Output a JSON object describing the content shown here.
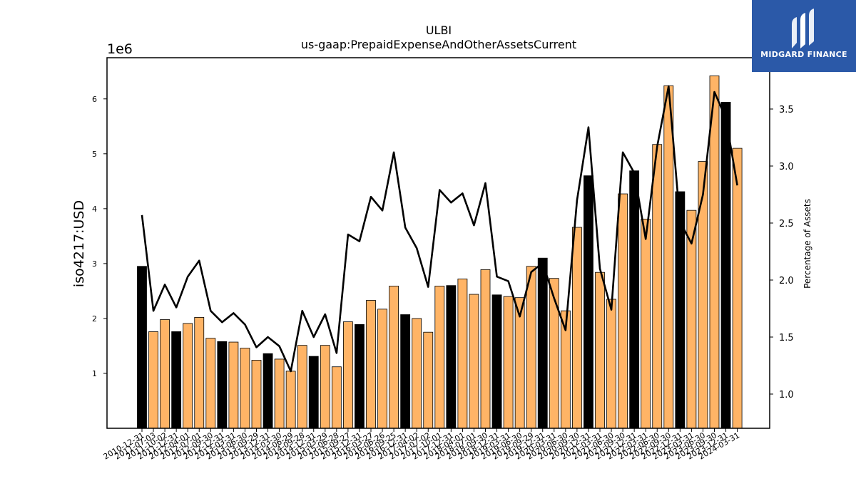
{
  "colors": {
    "annual": "#000000",
    "quarterly": "#ffb466",
    "line": "#000000",
    "logo_bg": "#2b59a8"
  },
  "logo": {
    "text": "MIDGARD FINANCE",
    "icon": "midgard-logo-icon"
  },
  "chart_data": {
    "type": "bar",
    "title": "ULBI",
    "subtitle": "us-gaap:PrepaidExpenseAndOtherAssetsCurrent",
    "ylabel": "iso4217:USD",
    "y2label": "Percentage of Assets",
    "y_scale_label": "1e6",
    "ylim": [
      0,
      6750000
    ],
    "y2lim": [
      0.7,
      3.95
    ],
    "yticks": [
      1,
      2,
      3,
      4,
      5,
      6
    ],
    "y2ticks": [
      "1.0",
      "1.5",
      "2.0",
      "2.5",
      "3.0",
      "3.5"
    ],
    "categories": [
      "2010-12-31",
      "2011-07-03",
      "2011-10-02",
      "2011-12-31",
      "2012-04-01",
      "2012-07-01",
      "2012-09-30",
      "2012-12-31",
      "2013-03-31",
      "2013-06-30",
      "2013-09-29",
      "2013-12-31",
      "2014-03-30",
      "2014-06-29",
      "2014-09-28",
      "2014-12-31",
      "2015-03-29",
      "2015-06-28",
      "2015-09-27",
      "2015-12-31",
      "2016-03-27",
      "2016-06-26",
      "2016-09-25",
      "2016-12-31",
      "2017-04-02",
      "2017-07-02",
      "2017-10-01",
      "2017-12-31",
      "2018-04-01",
      "2018-07-01",
      "2018-09-30",
      "2018-12-31",
      "2019-03-31",
      "2019-06-30",
      "2019-09-29",
      "2019-12-31",
      "2020-03-31",
      "2020-06-30",
      "2020-09-30",
      "2020-12-31",
      "2021-03-31",
      "2021-06-30",
      "2021-09-30",
      "2021-12-31",
      "2022-03-31",
      "2022-06-30",
      "2022-09-30",
      "2022-12-31",
      "2023-03-31",
      "2023-06-30",
      "2023-09-30",
      "2023-12-31",
      "2024-03-31"
    ],
    "series": [
      {
        "kind": "bar",
        "values": [
          2950000,
          1760000,
          1980000,
          1760000,
          1910000,
          2020000,
          1640000,
          1580000,
          1570000,
          1460000,
          1240000,
          1360000,
          1260000,
          1040000,
          1510000,
          1310000,
          1510000,
          1120000,
          1940000,
          1890000,
          2330000,
          2170000,
          2590000,
          2070000,
          2000000,
          1750000,
          2590000,
          2600000,
          2720000,
          2440000,
          2890000,
          2430000,
          2400000,
          2380000,
          2950000,
          3100000,
          2730000,
          2140000,
          3660000,
          4600000,
          2840000,
          2350000,
          4270000,
          4690000,
          3810000,
          5170000,
          6240000,
          4310000,
          3970000,
          4860000,
          6420000,
          5940000,
          5100000
        ],
        "annual": [
          true,
          false,
          false,
          true,
          false,
          false,
          false,
          true,
          false,
          false,
          false,
          true,
          false,
          false,
          false,
          true,
          false,
          false,
          false,
          true,
          false,
          false,
          false,
          true,
          false,
          false,
          false,
          true,
          false,
          false,
          false,
          true,
          false,
          false,
          false,
          true,
          false,
          false,
          false,
          true,
          false,
          false,
          false,
          true,
          false,
          false,
          false,
          true,
          false,
          false,
          false,
          true,
          false
        ]
      },
      {
        "kind": "line",
        "axis": "right",
        "values": [
          2.57,
          1.73,
          1.96,
          1.76,
          2.03,
          2.17,
          1.73,
          1.63,
          1.71,
          1.61,
          1.41,
          1.5,
          1.42,
          1.2,
          1.73,
          1.5,
          1.7,
          1.36,
          2.4,
          2.34,
          2.73,
          2.61,
          3.12,
          2.46,
          2.28,
          1.94,
          2.79,
          2.68,
          2.76,
          2.48,
          2.85,
          2.03,
          1.99,
          1.68,
          2.07,
          2.15,
          1.84,
          1.56,
          2.7,
          3.34,
          2.1,
          1.74,
          3.12,
          2.94,
          2.36,
          3.17,
          3.7,
          2.51,
          2.32,
          2.75,
          3.65,
          3.42,
          2.83
        ]
      }
    ]
  }
}
